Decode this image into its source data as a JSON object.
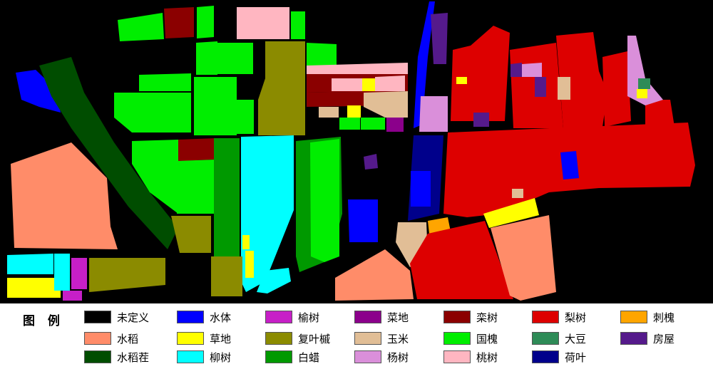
{
  "legend": {
    "title": "图 例",
    "items": [
      {
        "id": "undefined",
        "label": "未定义",
        "color": "#000000"
      },
      {
        "id": "rice",
        "label": "水稻",
        "color": "#FF8C69"
      },
      {
        "id": "rice-stubble",
        "label": "水稻茬",
        "color": "#004D00"
      },
      {
        "id": "water",
        "label": "水体",
        "color": "#0000FF"
      },
      {
        "id": "grass",
        "label": "草地",
        "color": "#FFFF00"
      },
      {
        "id": "willow",
        "label": "柳树",
        "color": "#00FFFF"
      },
      {
        "id": "elm",
        "label": "榆树",
        "color": "#C71FC7"
      },
      {
        "id": "boxelder",
        "label": "复叶槭",
        "color": "#8B8B00"
      },
      {
        "id": "ash",
        "label": "白蜡",
        "color": "#009900"
      },
      {
        "id": "vegetable",
        "label": "菜地",
        "color": "#8B008B"
      },
      {
        "id": "corn",
        "label": "玉米",
        "color": "#E1BE96"
      },
      {
        "id": "poplar",
        "label": "杨树",
        "color": "#DA8FDA"
      },
      {
        "id": "koelreuteria",
        "label": "栾树",
        "color": "#8B0000"
      },
      {
        "id": "sophora",
        "label": "国槐",
        "color": "#00EE00"
      },
      {
        "id": "peach",
        "label": "桃树",
        "color": "#FFB6C1"
      },
      {
        "id": "pear",
        "label": "梨树",
        "color": "#DD0000"
      },
      {
        "id": "soybean",
        "label": "大豆",
        "color": "#2E8B57"
      },
      {
        "id": "lotus",
        "label": "荷叶",
        "color": "#00008B"
      },
      {
        "id": "locust",
        "label": "刺槐",
        "color": "#FFA500"
      },
      {
        "id": "house",
        "label": "房屋",
        "color": "#551A8B"
      }
    ]
  }
}
